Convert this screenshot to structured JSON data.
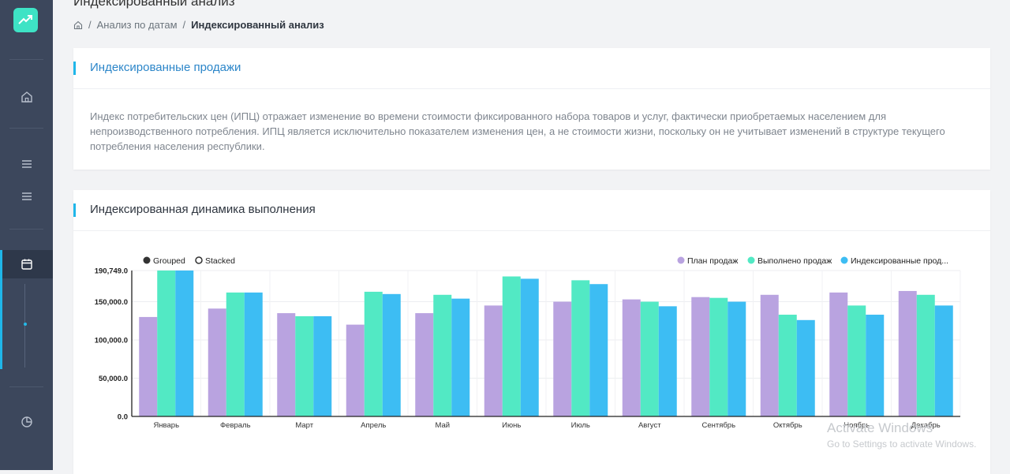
{
  "page_title": "Индексированный анализ",
  "breadcrumb": {
    "items": [
      "Анализ по датам",
      "Индексированный анализ"
    ]
  },
  "card1": {
    "title": "Индексированные продажи",
    "description": "Индекс потребительских цен (ИПЦ) отражает изменение во времени стоимости фиксированного набора товаров и услуг, фактически приобретаемых населением для непроизводственного потребления. ИПЦ является исключительно показателем изменения цен, а не стоимости жизни, поскольку он не учитывает изменений в структуре текущего потребления населения республики."
  },
  "card2": {
    "title": "Индексированная динамика выполнения"
  },
  "controls": {
    "grouped": "Grouped",
    "stacked": "Stacked"
  },
  "icons": [
    "trending-up-icon",
    "home-icon",
    "menu-icon",
    "menu-icon",
    "calendar-icon",
    "pie-chart-icon"
  ],
  "colors": {
    "plan": "#b9a3e0",
    "done": "#52e9c4",
    "indexed": "#3dbdf3",
    "accent": "#1fb6e9"
  },
  "chart_data": {
    "type": "bar",
    "categories": [
      "Январь",
      "Февраль",
      "Март",
      "Апрель",
      "Май",
      "Июнь",
      "Июль",
      "Август",
      "Сентябрь",
      "Октябрь",
      "Ноябрь",
      "Декабрь"
    ],
    "series": [
      {
        "name": "План продаж",
        "values": [
          130000,
          141000,
          135000,
          120000,
          135000,
          145000,
          150000,
          153000,
          156000,
          159000,
          162000,
          164000
        ]
      },
      {
        "name": "Выполнено продаж",
        "values": [
          190749,
          162000,
          131000,
          163000,
          159000,
          183000,
          178000,
          150000,
          155000,
          133000,
          145000,
          159000
        ]
      },
      {
        "name": "Индексированные прод...",
        "values": [
          190749,
          162000,
          131000,
          160000,
          154000,
          180000,
          173000,
          144000,
          150000,
          126000,
          133000,
          145000
        ]
      }
    ],
    "yticks": [
      "0.0",
      "50,000.0",
      "100,000.0",
      "150,000.0",
      "190,749.0"
    ],
    "ylim": [
      0,
      190749
    ],
    "mode": "grouped",
    "legend_position": "top-right",
    "grid": true
  },
  "watermark": {
    "line1": "Activate Windows",
    "line2": "Go to Settings to activate Windows."
  }
}
